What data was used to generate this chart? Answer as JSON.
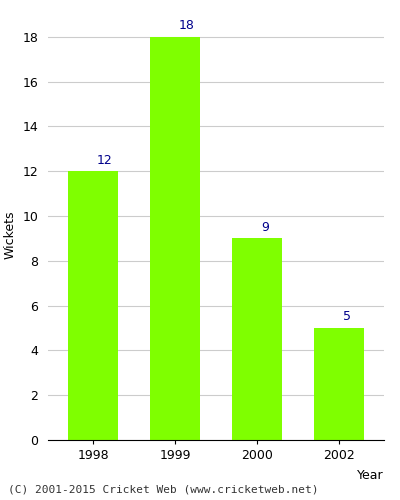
{
  "categories": [
    "1998",
    "1999",
    "2000",
    "2002"
  ],
  "values": [
    12,
    18,
    9,
    5
  ],
  "bar_color": "#7fff00",
  "bar_edgecolor": "#7fff00",
  "label_color": "#00008b",
  "xlabel": "Year",
  "ylabel": "Wickets",
  "ylim": [
    0,
    18
  ],
  "yticks": [
    0,
    2,
    4,
    6,
    8,
    10,
    12,
    14,
    16,
    18
  ],
  "label_fontsize": 9,
  "axis_fontsize": 9,
  "tick_fontsize": 9,
  "footer_text": "(C) 2001-2015 Cricket Web (www.cricketweb.net)",
  "footer_fontsize": 8,
  "background_color": "#ffffff",
  "bar_width": 0.6,
  "grid_color": "#cccccc"
}
